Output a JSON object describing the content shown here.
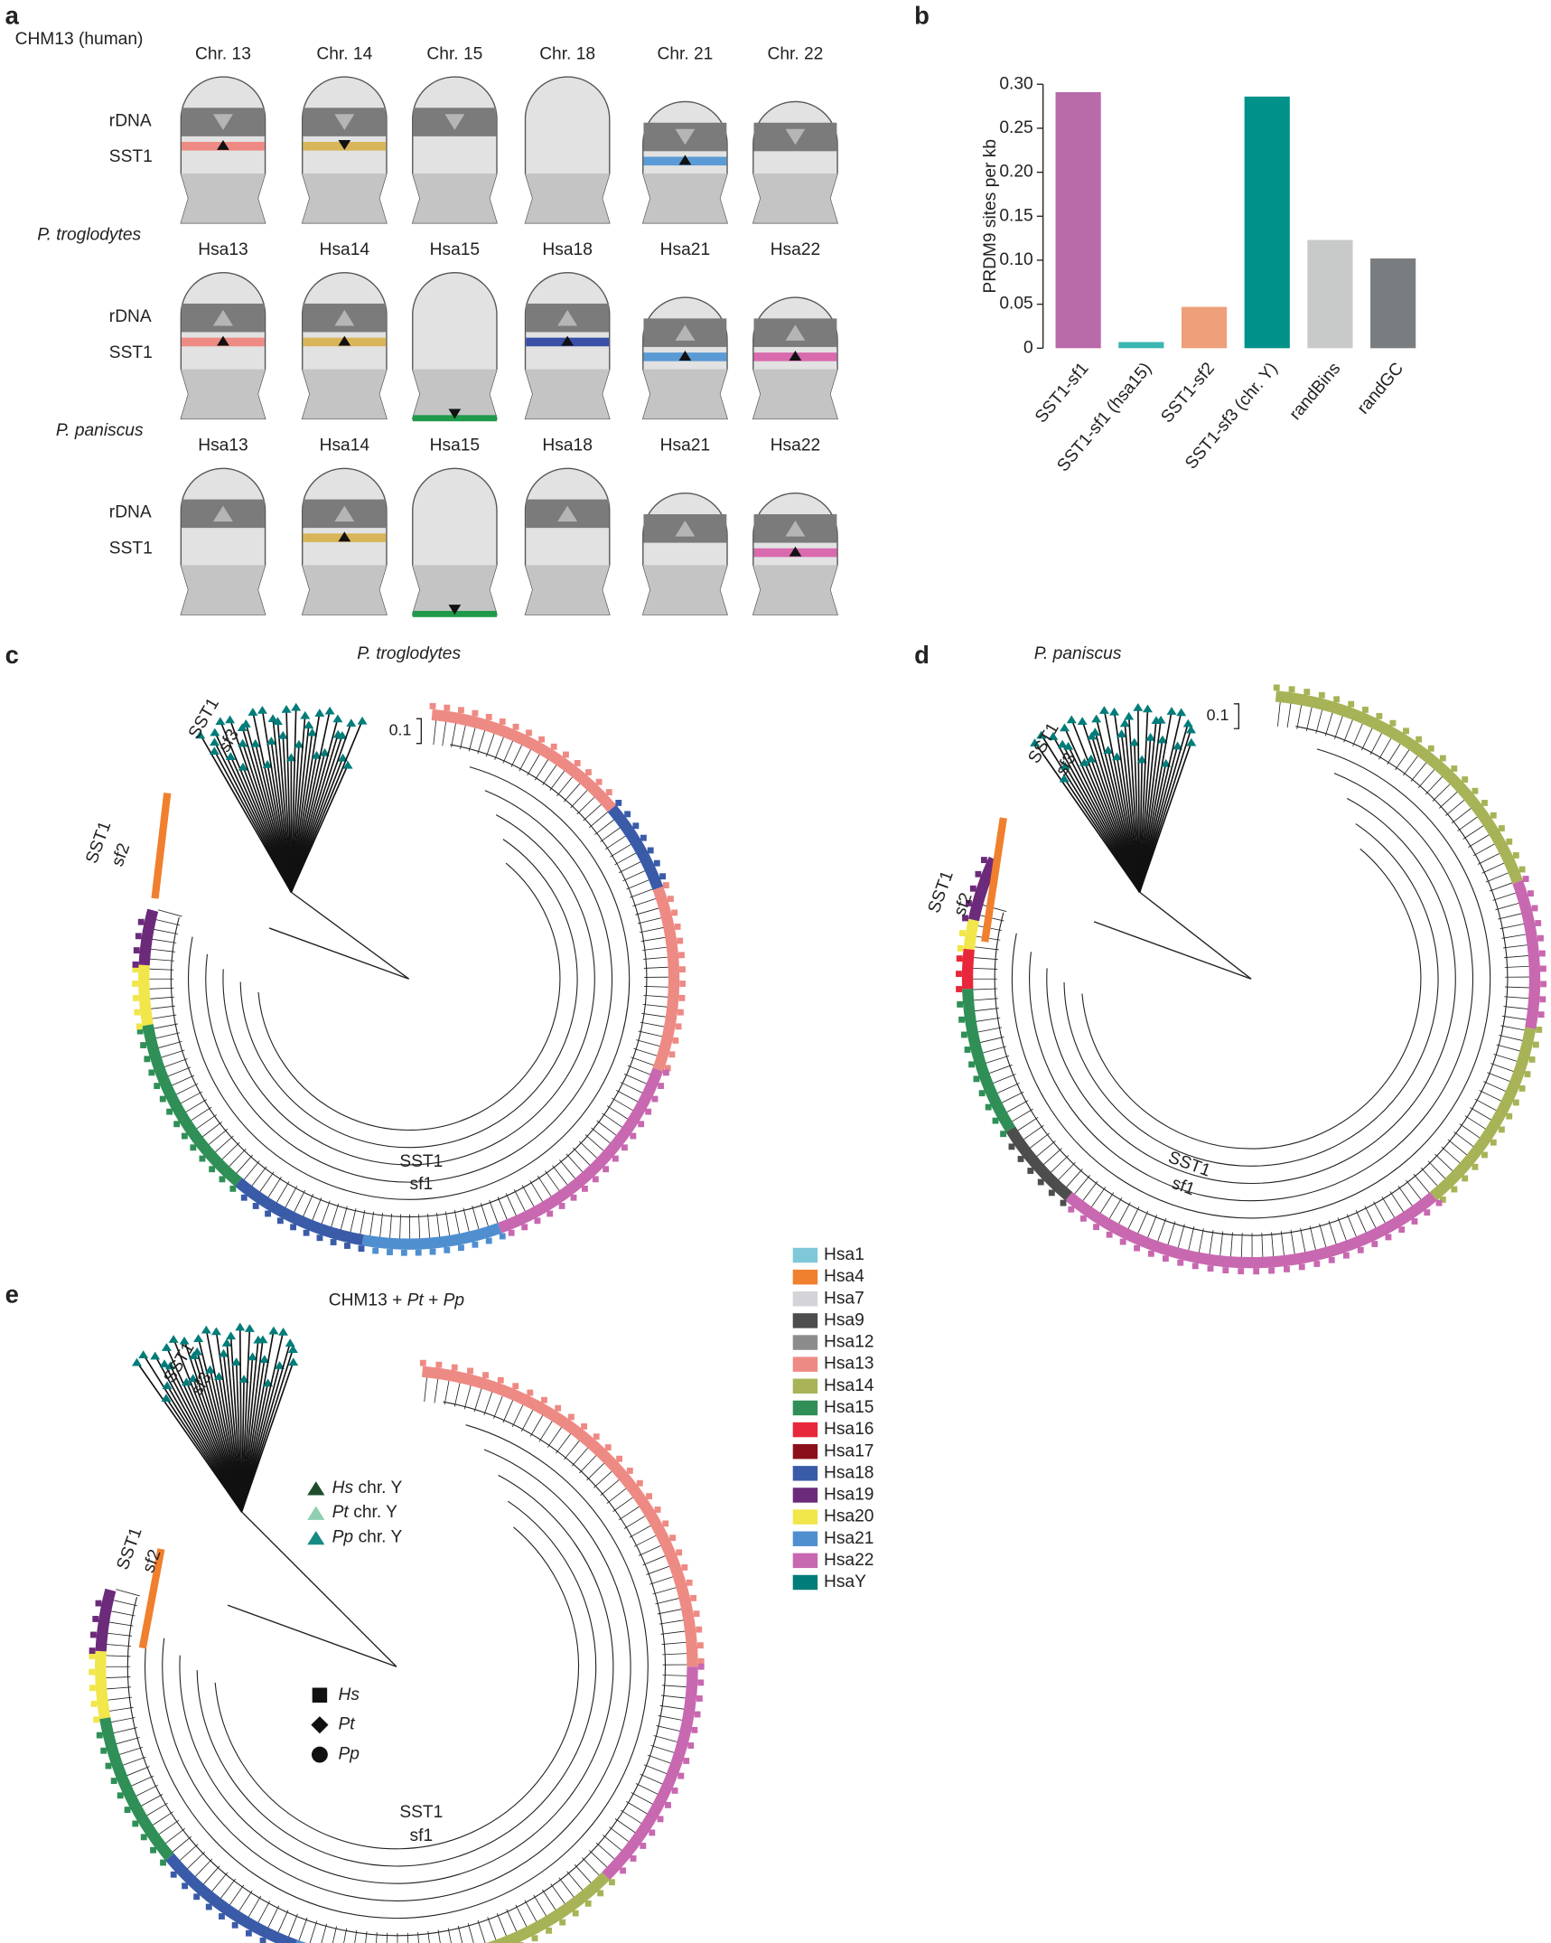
{
  "panel_letters": [
    "a",
    "b",
    "c",
    "d",
    "e"
  ],
  "karyotype": {
    "band_labels": [
      "rDNA",
      "SST1"
    ],
    "rows": [
      {
        "species": "CHM13 (human)",
        "italic": false,
        "rdna_arrow": "down",
        "chromosomes": [
          {
            "label": "Chr. 13",
            "rdna": true,
            "short": false,
            "sst1": {
              "color": "#ee8a84",
              "arrow": "up",
              "position": "band"
            }
          },
          {
            "label": "Chr. 14",
            "rdna": true,
            "short": false,
            "sst1": {
              "color": "#d9b55a",
              "arrow": "down",
              "position": "band"
            }
          },
          {
            "label": "Chr. 15",
            "rdna": true,
            "short": false,
            "sst1": null
          },
          {
            "label": "Chr. 18",
            "rdna": false,
            "short": false,
            "sst1": null
          },
          {
            "label": "Chr. 21",
            "rdna": true,
            "short": true,
            "sst1": {
              "color": "#5b9bd5",
              "arrow": "up",
              "position": "band"
            }
          },
          {
            "label": "Chr. 22",
            "rdna": true,
            "short": true,
            "sst1": null
          }
        ]
      },
      {
        "species": "P. troglodytes",
        "italic": true,
        "rdna_arrow": "up",
        "chromosomes": [
          {
            "label": "Hsa13",
            "rdna": true,
            "short": false,
            "sst1": {
              "color": "#ee8a84",
              "arrow": "up",
              "position": "band"
            }
          },
          {
            "label": "Hsa14",
            "rdna": true,
            "short": false,
            "sst1": {
              "color": "#d9b55a",
              "arrow": "up",
              "position": "band"
            }
          },
          {
            "label": "Hsa15",
            "rdna": false,
            "short": false,
            "sst1": {
              "color": "#1f9a4a",
              "arrow": "down",
              "position": "end"
            }
          },
          {
            "label": "Hsa18",
            "rdna": true,
            "short": false,
            "sst1": {
              "color": "#3a4fa8",
              "arrow": "up",
              "position": "band"
            }
          },
          {
            "label": "Hsa21",
            "rdna": true,
            "short": true,
            "sst1": {
              "color": "#5b9bd5",
              "arrow": "up",
              "position": "band"
            }
          },
          {
            "label": "Hsa22",
            "rdna": true,
            "short": true,
            "sst1": {
              "color": "#d96aae",
              "arrow": "up",
              "position": "band"
            }
          }
        ]
      },
      {
        "species": "P. paniscus",
        "italic": true,
        "rdna_arrow": "up",
        "chromosomes": [
          {
            "label": "Hsa13",
            "rdna": true,
            "short": false,
            "sst1": null
          },
          {
            "label": "Hsa14",
            "rdna": true,
            "short": false,
            "sst1": {
              "color": "#d9b55a",
              "arrow": "up",
              "position": "band"
            }
          },
          {
            "label": "Hsa15",
            "rdna": false,
            "short": false,
            "sst1": {
              "color": "#1f9a4a",
              "arrow": "down",
              "position": "end"
            }
          },
          {
            "label": "Hsa18",
            "rdna": true,
            "short": false,
            "sst1": null
          },
          {
            "label": "Hsa21",
            "rdna": true,
            "short": true,
            "sst1": null
          },
          {
            "label": "Hsa22",
            "rdna": true,
            "short": true,
            "sst1": {
              "color": "#d96aae",
              "arrow": "up",
              "position": "band"
            }
          }
        ]
      }
    ]
  },
  "chart_data": {
    "type": "bar",
    "y_label": "PRDM9 sites per kb",
    "categories": [
      "SST1-sf1",
      "SST1-sf1 (hsa15)",
      "SST1-sf2",
      "SST1-sf3 (chr. Y)",
      "randBins",
      "randGC"
    ],
    "values": [
      0.291,
      0.007,
      0.047,
      0.286,
      0.123,
      0.102
    ],
    "colors": [
      "#b96aa8",
      "#3bb6b0",
      "#eda07a",
      "#00918a",
      "#c8c9c9",
      "#7a7d80"
    ],
    "ylim": [
      0,
      0.3
    ],
    "yticks": [
      0,
      0.05,
      {
        "value": 0.1,
        "label": "0.10"
      },
      0.15,
      {
        "value": 0.2,
        "label": "0.20"
      },
      0.25,
      {
        "value": 0.3,
        "label": "0.30"
      }
    ]
  },
  "legend": [
    {
      "name": "Hsa1",
      "color": "#7ec8d9"
    },
    {
      "name": "Hsa4",
      "color": "#f07f2e"
    },
    {
      "name": "Hsa7",
      "color": "#d3d3d8"
    },
    {
      "name": "Hsa9",
      "color": "#4d4d4d"
    },
    {
      "name": "Hsa12",
      "color": "#8c8c8c"
    },
    {
      "name": "Hsa13",
      "color": "#ee8a84"
    },
    {
      "name": "Hsa14",
      "color": "#a8b357"
    },
    {
      "name": "Hsa15",
      "color": "#2f8f57"
    },
    {
      "name": "Hsa16",
      "color": "#e8273a"
    },
    {
      "name": "Hsa17",
      "color": "#8b0f1a"
    },
    {
      "name": "Hsa18",
      "color": "#3a5ba8"
    },
    {
      "name": "Hsa19",
      "color": "#6c2a7a"
    },
    {
      "name": "Hsa20",
      "color": "#f1e64a"
    },
    {
      "name": "Hsa21",
      "color": "#4f8fd0"
    },
    {
      "name": "Hsa22",
      "color": "#c868b0"
    },
    {
      "name": "HsaY",
      "color": "#007d7a"
    }
  ],
  "trees": [
    {
      "title_parts": [
        {
          "text": "P. troglodytes",
          "italic": true
        }
      ],
      "scale_label": "0.1",
      "clade_labels": [
        [
          "SST1",
          "sf3"
        ],
        [
          "SST1",
          "sf2"
        ],
        [
          "SST1",
          "sf1"
        ]
      ]
    },
    {
      "title_parts": [
        {
          "text": "P. paniscus",
          "italic": true
        }
      ],
      "scale_label": "0.1",
      "clade_labels": [
        [
          "SST1",
          "sf3"
        ],
        [
          "SST1",
          "sf2"
        ],
        [
          "SST1",
          "sf1"
        ]
      ]
    },
    {
      "title_parts": [
        {
          "text": "CHM13 + ",
          "italic": false
        },
        {
          "text": "Pt",
          "italic": true
        },
        {
          "text": " + ",
          "italic": false
        },
        {
          "text": "Pp",
          "italic": true
        }
      ],
      "clade_labels": [
        [
          "SST1",
          "sf3"
        ],
        [
          "SST1",
          "sf2"
        ],
        [
          "SST1",
          "sf1"
        ]
      ]
    }
  ],
  "y_chromosome_key": [
    {
      "species": "Hs",
      "label": "chr. Y",
      "color": "#1f4d2c"
    },
    {
      "species": "Pt",
      "label": "chr. Y",
      "color": "#8fcfb0"
    },
    {
      "species": "Pp",
      "label": "chr. Y",
      "color": "#178a86"
    }
  ],
  "species_shape_key": [
    {
      "species": "Hs",
      "shape": "square"
    },
    {
      "species": "Pt",
      "shape": "diamond"
    },
    {
      "species": "Pp",
      "shape": "circle"
    }
  ]
}
